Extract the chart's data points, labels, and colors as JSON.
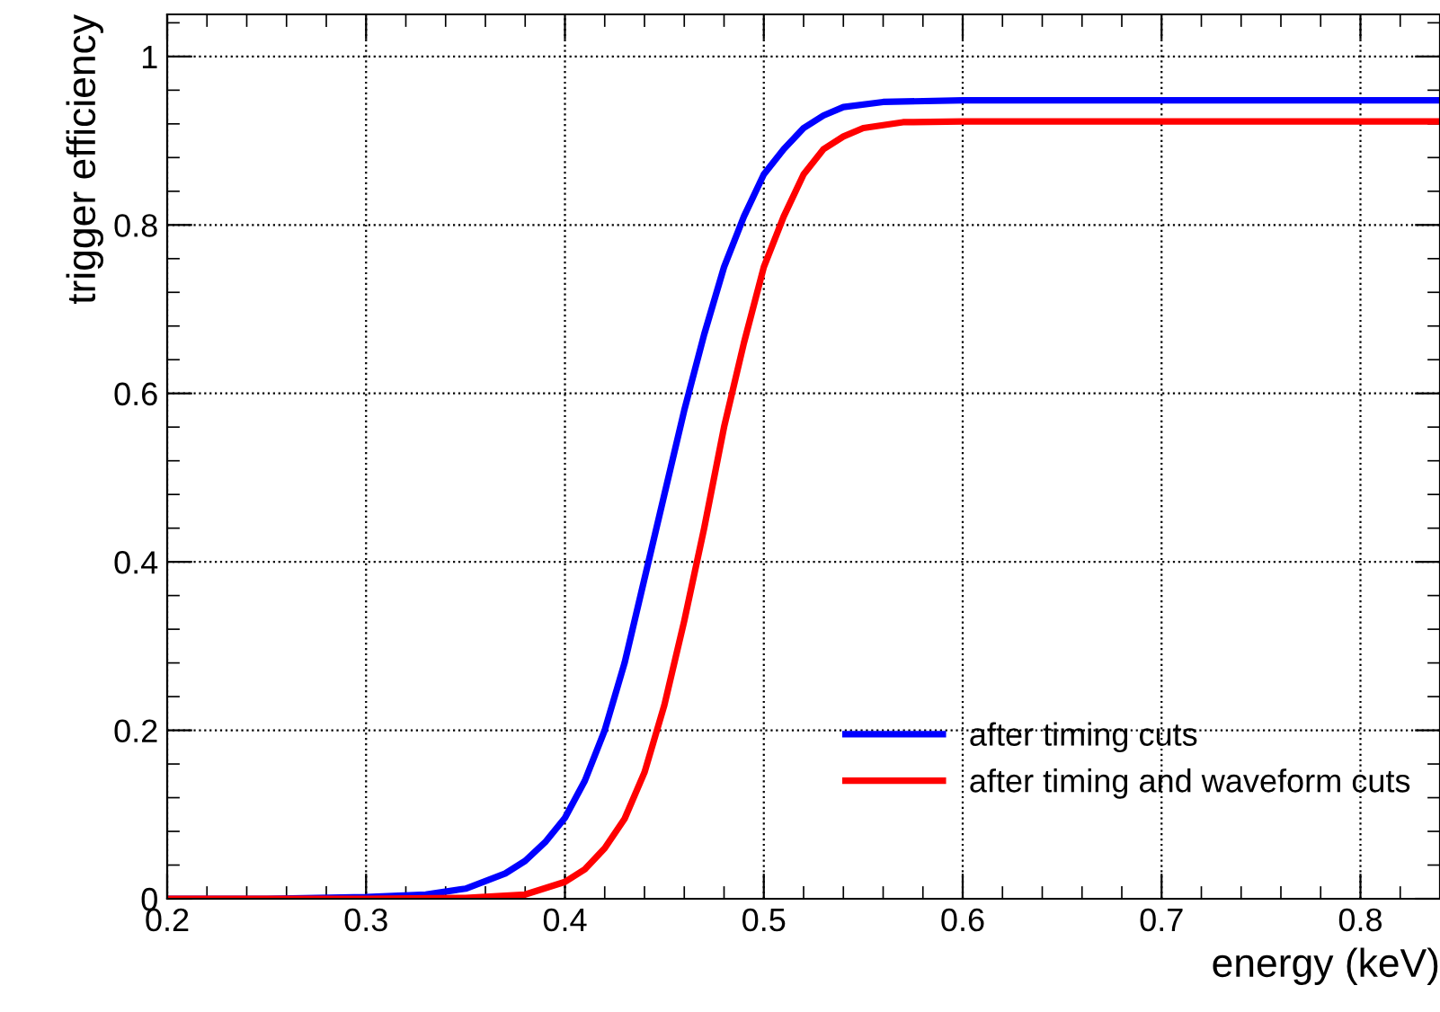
{
  "chart_data": {
    "type": "line",
    "xlabel": "energy (keV)",
    "ylabel": "trigger efficiency",
    "xlim": [
      0.2,
      0.84
    ],
    "ylim": [
      0,
      1.05
    ],
    "xticks": [
      0.2,
      0.3,
      0.4,
      0.5,
      0.6,
      0.7,
      0.8
    ],
    "yticks": [
      0,
      0.2,
      0.4,
      0.6,
      0.8,
      1
    ],
    "grid": true,
    "legend": "bottom right",
    "marker": "none",
    "line_style": "solid",
    "series": [
      {
        "name": "after timing cuts",
        "color": "#0000ff",
        "x": [
          0.2,
          0.25,
          0.3,
          0.33,
          0.35,
          0.37,
          0.38,
          0.39,
          0.4,
          0.41,
          0.42,
          0.43,
          0.44,
          0.45,
          0.46,
          0.47,
          0.48,
          0.49,
          0.5,
          0.51,
          0.52,
          0.53,
          0.54,
          0.56,
          0.6,
          0.84
        ],
        "values": [
          0,
          0,
          0.002,
          0.005,
          0.012,
          0.03,
          0.045,
          0.067,
          0.096,
          0.14,
          0.2,
          0.28,
          0.38,
          0.48,
          0.58,
          0.67,
          0.75,
          0.81,
          0.86,
          0.89,
          0.915,
          0.93,
          0.94,
          0.946,
          0.948,
          0.948
        ]
      },
      {
        "name": "after timing and waveform cuts",
        "color": "#ff0000",
        "x": [
          0.2,
          0.3,
          0.35,
          0.38,
          0.4,
          0.41,
          0.42,
          0.43,
          0.44,
          0.45,
          0.46,
          0.47,
          0.48,
          0.49,
          0.5,
          0.51,
          0.52,
          0.53,
          0.54,
          0.55,
          0.57,
          0.6,
          0.84
        ],
        "values": [
          0,
          0,
          0.001,
          0.005,
          0.02,
          0.035,
          0.06,
          0.095,
          0.15,
          0.23,
          0.33,
          0.44,
          0.56,
          0.66,
          0.75,
          0.81,
          0.86,
          0.89,
          0.905,
          0.915,
          0.922,
          0.923,
          0.923
        ]
      }
    ]
  }
}
